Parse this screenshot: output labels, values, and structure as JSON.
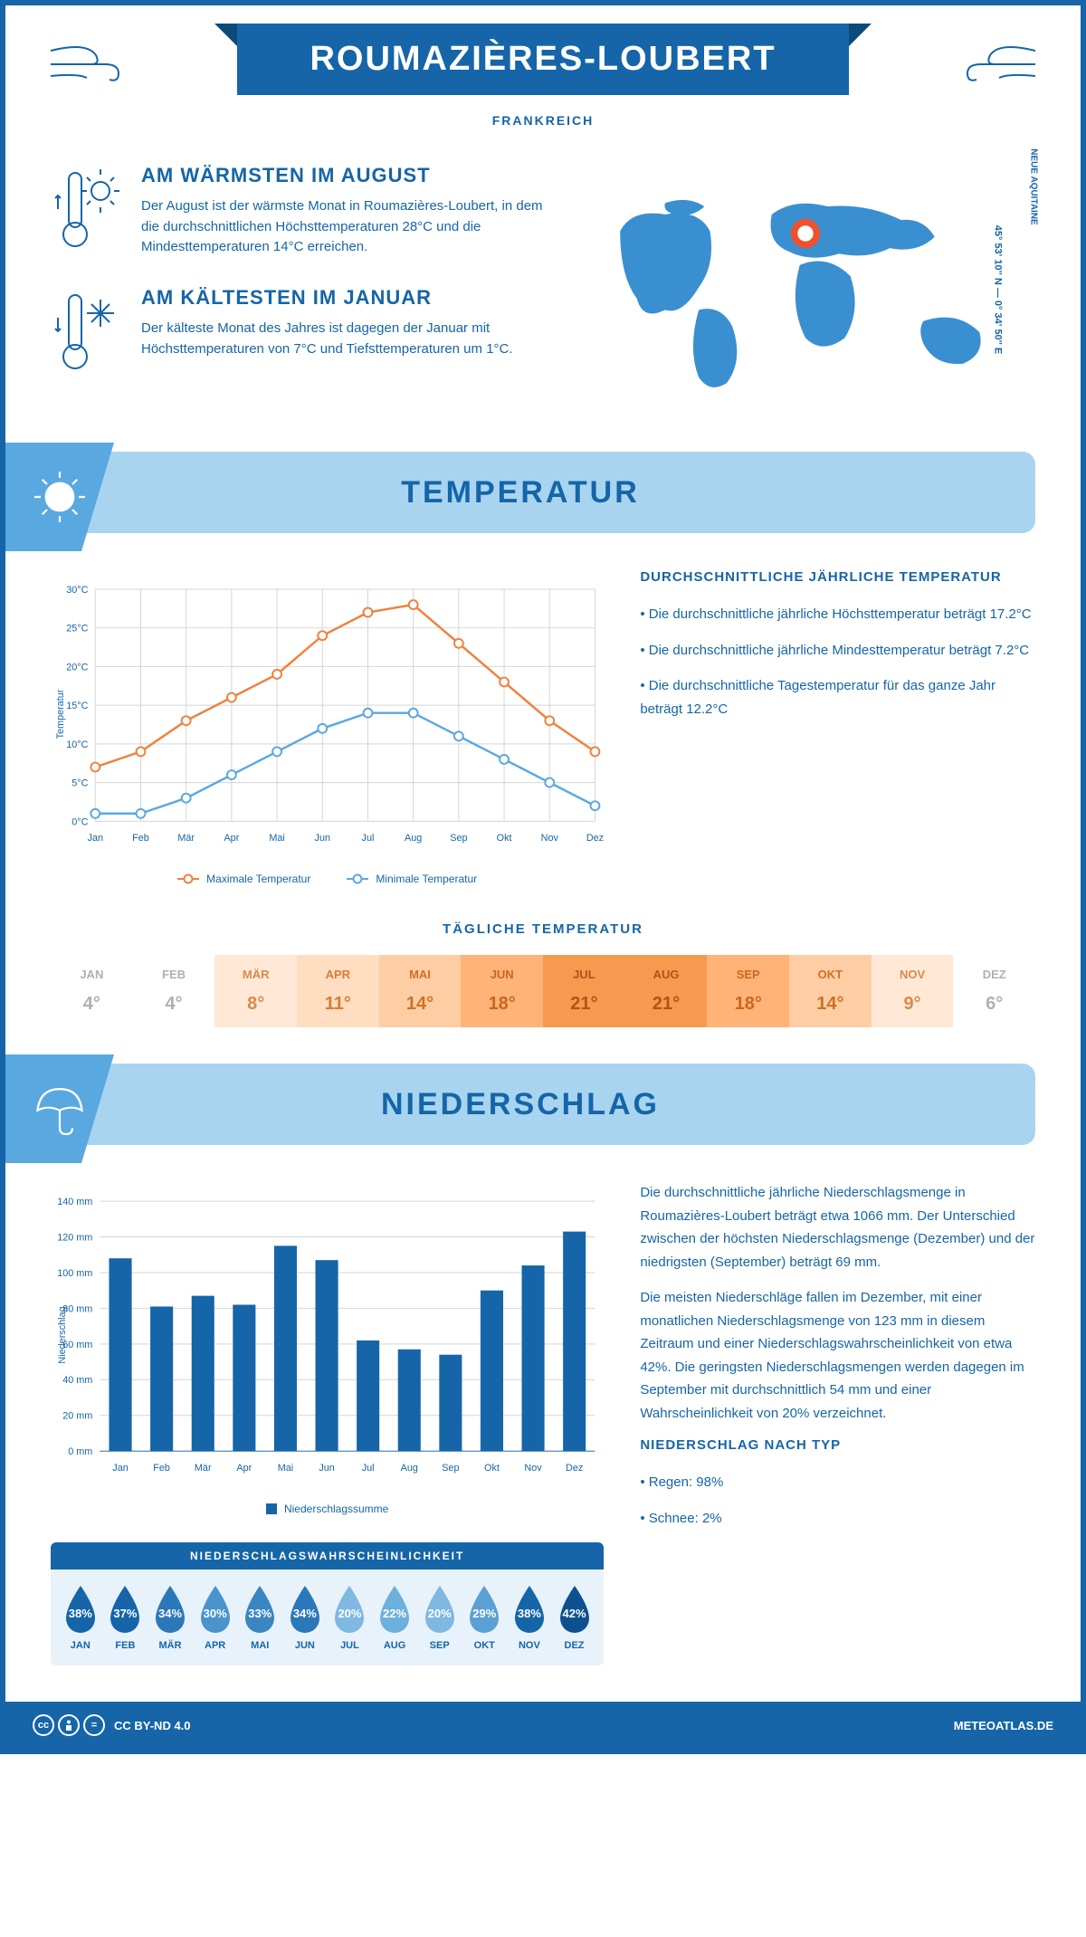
{
  "header": {
    "title": "ROUMAZIÈRES-LOUBERT",
    "country": "FRANKREICH",
    "coords": "45° 53' 10'' N — 0° 34' 50'' E",
    "region": "NEUE AQUITAINE"
  },
  "colors": {
    "primary": "#1565a8",
    "light_blue": "#a8d4f0",
    "mid_blue": "#5aa8e0",
    "accent_orange": "#f0813c",
    "line_max": "#f0813c",
    "line_min": "#5aa8e0",
    "grid": "#d5d5d5",
    "bar": "#1565a8"
  },
  "facts": {
    "warm": {
      "title": "AM WÄRMSTEN IM AUGUST",
      "text": "Der August ist der wärmste Monat in Roumazières-Loubert, in dem die durchschnittlichen Höchsttemperaturen 28°C und die Mindesttemperaturen 14°C erreichen."
    },
    "cold": {
      "title": "AM KÄLTESTEN IM JANUAR",
      "text": "Der kälteste Monat des Jahres ist dagegen der Januar mit Höchsttemperaturen von 7°C und Tiefsttemperaturen um 1°C."
    }
  },
  "sections": {
    "temperature": "TEMPERATUR",
    "precipitation": "NIEDERSCHLAG"
  },
  "temp_chart": {
    "months": [
      "Jan",
      "Feb",
      "Mär",
      "Apr",
      "Mai",
      "Jun",
      "Jul",
      "Aug",
      "Sep",
      "Okt",
      "Nov",
      "Dez"
    ],
    "max_values": [
      7,
      9,
      13,
      16,
      19,
      24,
      27,
      28,
      23,
      18,
      13,
      9
    ],
    "min_values": [
      1,
      1,
      3,
      6,
      9,
      12,
      14,
      14,
      11,
      8,
      5,
      2
    ],
    "ylim": [
      0,
      30
    ],
    "ytick_step": 5,
    "ylabel": "Temperatur",
    "legend_max": "Maximale Temperatur",
    "legend_min": "Minimale Temperatur",
    "line_width": 2.5,
    "marker_size": 5
  },
  "temp_desc": {
    "title": "DURCHSCHNITTLICHE JÄHRLICHE TEMPERATUR",
    "b1": "• Die durchschnittliche jährliche Höchsttemperatur beträgt 17.2°C",
    "b2": "• Die durchschnittliche jährliche Mindesttemperatur beträgt 7.2°C",
    "b3": "• Die durchschnittliche Tagestemperatur für das ganze Jahr beträgt 12.2°C"
  },
  "daily_temp": {
    "title": "TÄGLICHE TEMPERATUR",
    "months": [
      "JAN",
      "FEB",
      "MÄR",
      "APR",
      "MAI",
      "JUN",
      "JUL",
      "AUG",
      "SEP",
      "OKT",
      "NOV",
      "DEZ"
    ],
    "values": [
      "4°",
      "4°",
      "8°",
      "11°",
      "14°",
      "18°",
      "21°",
      "21°",
      "18°",
      "14°",
      "9°",
      "6°"
    ],
    "bg_colors": [
      "#ffffff",
      "#ffffff",
      "#ffe9d6",
      "#ffddc0",
      "#ffcda3",
      "#ffb377",
      "#f59a4f",
      "#f59a4f",
      "#ffb377",
      "#ffcda3",
      "#ffe9d6",
      "#ffffff"
    ],
    "text_colors": [
      "#b0b0b0",
      "#b0b0b0",
      "#d68a4c",
      "#d27e3a",
      "#cc7228",
      "#c96720",
      "#b05318",
      "#b05318",
      "#c96720",
      "#cc7228",
      "#d68a4c",
      "#b0b0b0"
    ]
  },
  "precip_chart": {
    "months": [
      "Jan",
      "Feb",
      "Mär",
      "Apr",
      "Mai",
      "Jun",
      "Jul",
      "Aug",
      "Sep",
      "Okt",
      "Nov",
      "Dez"
    ],
    "values": [
      108,
      81,
      87,
      82,
      115,
      107,
      62,
      57,
      54,
      90,
      104,
      123
    ],
    "ylim": [
      0,
      140
    ],
    "ytick_step": 20,
    "ylabel": "Niederschlag",
    "legend": "Niederschlagssumme",
    "bar_width": 0.55
  },
  "precip_desc": {
    "p1": "Die durchschnittliche jährliche Niederschlagsmenge in Roumazières-Loubert beträgt etwa 1066 mm. Der Unterschied zwischen der höchsten Niederschlagsmenge (Dezember) und der niedrigsten (September) beträgt 69 mm.",
    "p2": "Die meisten Niederschläge fallen im Dezember, mit einer monatlichen Niederschlagsmenge von 123 mm in diesem Zeitraum und einer Niederschlagswahrscheinlichkeit von etwa 42%. Die geringsten Niederschlagsmengen werden dagegen im September mit durchschnittlich 54 mm und einer Wahrscheinlichkeit von 20% verzeichnet.",
    "type_title": "NIEDERSCHLAG NACH TYP",
    "type_b1": "• Regen: 98%",
    "type_b2": "• Schnee: 2%"
  },
  "precip_prob": {
    "title": "NIEDERSCHLAGSWAHRSCHEINLICHKEIT",
    "months": [
      "JAN",
      "FEB",
      "MÄR",
      "APR",
      "MAI",
      "JUN",
      "JUL",
      "AUG",
      "SEP",
      "OKT",
      "NOV",
      "DEZ"
    ],
    "values": [
      "38%",
      "37%",
      "34%",
      "30%",
      "33%",
      "34%",
      "20%",
      "22%",
      "20%",
      "29%",
      "38%",
      "42%"
    ],
    "colors": [
      "#1565a8",
      "#1565a8",
      "#2b78b8",
      "#4a93cc",
      "#3a86c2",
      "#2b78b8",
      "#7fb8e0",
      "#6eb0dc",
      "#7fb8e0",
      "#5aa0d4",
      "#1565a8",
      "#0d5090"
    ]
  },
  "footer": {
    "license": "CC BY-ND 4.0",
    "site": "METEOATLAS.DE"
  }
}
